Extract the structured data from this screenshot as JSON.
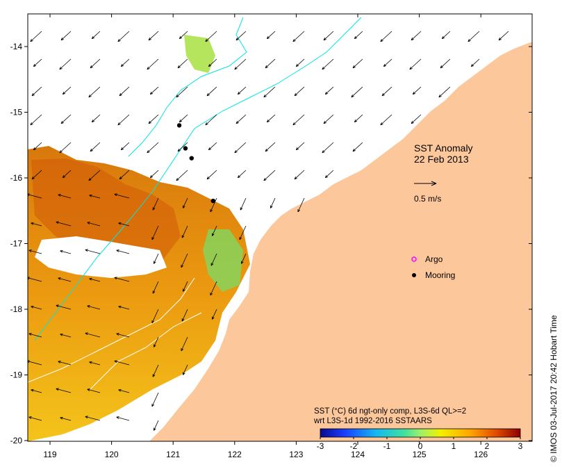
{
  "title": "SST Anomaly",
  "date": "22 Feb 2013",
  "scale_arrow_label": "0.5 m/s",
  "legend": {
    "argo": "Argo",
    "mooring": "Mooring"
  },
  "colorbar": {
    "caption_line1": "SST (°C) 6d ngt-only comp, L3S-6d QL>=2",
    "caption_line2": "wrt L3S-1d 1992-2016 SSTAARS",
    "ticks": [
      "-3",
      "-2",
      "-1",
      "0",
      "1",
      "2",
      "3"
    ],
    "range": [
      -3,
      3
    ]
  },
  "x_ticks": [
    "119",
    "120",
    "121",
    "122",
    "123",
    "124",
    "125",
    "126"
  ],
  "y_ticks": [
    "-14",
    "-15",
    "-16",
    "-17",
    "-18",
    "-19",
    "-20"
  ],
  "credit": "© IMOS 03-Jul-2017 20:42 Hobart Time",
  "colors": {
    "land": "#fcc89b",
    "argo": "#ff00ff",
    "mooring": "#000000",
    "isobath": "#00e5e5"
  },
  "moorings": [
    {
      "lon": 121.1,
      "lat": -15.2
    },
    {
      "lon": 121.2,
      "lat": -15.55
    },
    {
      "lon": 121.3,
      "lat": -15.7
    },
    {
      "lon": 121.65,
      "lat": -16.35
    }
  ]
}
